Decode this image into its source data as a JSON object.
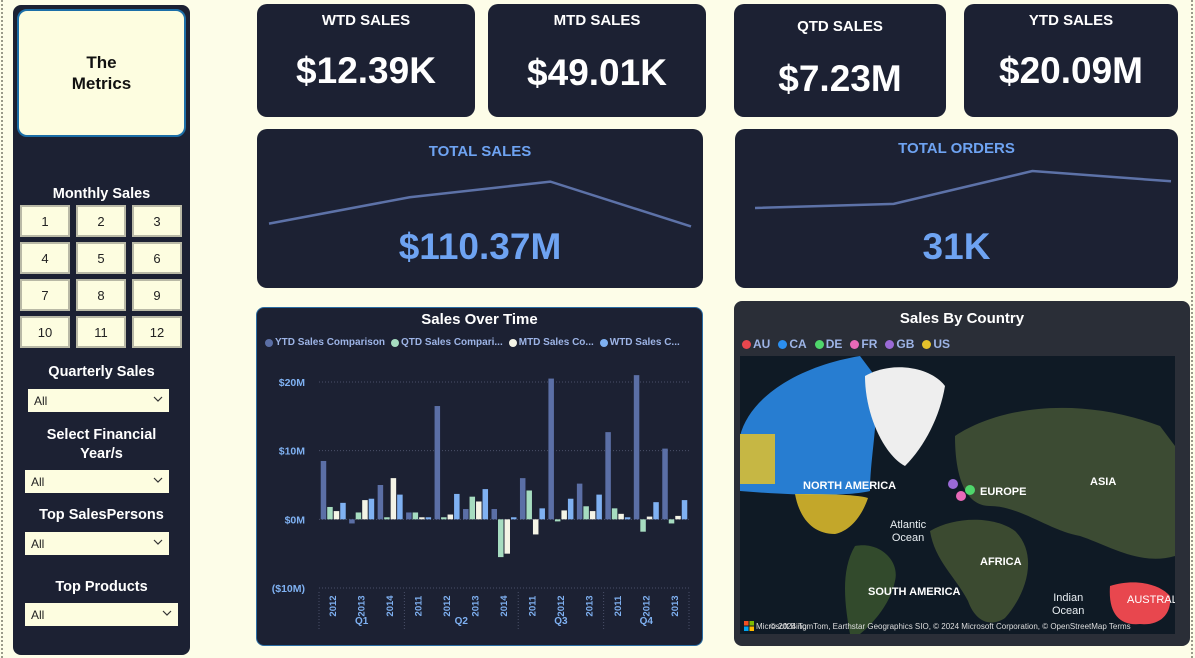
{
  "sidebar": {
    "logo_text": "The\nMetrics",
    "monthly_label": "Monthly Sales",
    "months": [
      "1",
      "2",
      "3",
      "4",
      "5",
      "6",
      "7",
      "8",
      "9",
      "10",
      "11",
      "12"
    ],
    "quarterly_label": "Quarterly Sales",
    "quarterly_value": "All",
    "fy_label": "Select Financial Year/s",
    "fy_value": "All",
    "salespersons_label": "Top SalesPersons",
    "salespersons_value": "All",
    "products_label": "Top Products",
    "products_value": "All"
  },
  "kpis": {
    "wtd": {
      "title": "WTD SALES",
      "value": "$12.39K"
    },
    "mtd": {
      "title": "MTD SALES",
      "value": "$49.01K"
    },
    "qtd": {
      "title": "QTD SALES",
      "value": "$7.23M"
    },
    "ytd": {
      "title": "YTD SALES",
      "value": "$20.09M"
    }
  },
  "total_sales": {
    "title": "TOTAL SALES",
    "value": "$110.37M",
    "trend": [
      0.15,
      0.62,
      0.9,
      0.1
    ]
  },
  "total_orders": {
    "title": "TOTAL ORDERS",
    "value": "31K",
    "trend": [
      0.05,
      0.15,
      0.95,
      0.7
    ]
  },
  "sales_over_time": {
    "title": "Sales Over Time",
    "legend": [
      "YTD Sales Comparison",
      "QTD Sales Compari...",
      "MTD Sales Co...",
      "WTD Sales C..."
    ]
  },
  "sales_by_country": {
    "title": "Sales By Country",
    "legend": [
      {
        "name": "AU",
        "color": "#e8474e"
      },
      {
        "name": "CA",
        "color": "#2b8ff0"
      },
      {
        "name": "DE",
        "color": "#4fd66b"
      },
      {
        "name": "FR",
        "color": "#e86ab8"
      },
      {
        "name": "GB",
        "color": "#9a6ad6"
      },
      {
        "name": "US",
        "color": "#e3c12b"
      }
    ],
    "labels": {
      "north_america": "NORTH AMERICA",
      "europe": "EUROPE",
      "asia": "ASIA",
      "africa": "AFRICA",
      "south_america": "SOUTH AMERICA",
      "atlantic": "Atlantic\nOcean",
      "indian": "Indian\nOcean",
      "australia": "AUSTRAL"
    },
    "credit": "© 2024 TomTom, Earthstar Geographics SIO, © 2024 Microsoft Corporation, © OpenStreetMap   Terms",
    "brand": "Microsoft Bing"
  },
  "chart_data": {
    "type": "bar",
    "title": "Sales Over Time",
    "x_levels": [
      "Year",
      "Quarter"
    ],
    "categories": [
      {
        "quarter": "Q1",
        "year": "2012"
      },
      {
        "quarter": "Q1",
        "year": "2013"
      },
      {
        "quarter": "Q1",
        "year": "2014"
      },
      {
        "quarter": "Q2",
        "year": "2011"
      },
      {
        "quarter": "Q2",
        "year": "2012"
      },
      {
        "quarter": "Q2",
        "year": "2013"
      },
      {
        "quarter": "Q2",
        "year": "2014"
      },
      {
        "quarter": "Q3",
        "year": "2011"
      },
      {
        "quarter": "Q3",
        "year": "2012"
      },
      {
        "quarter": "Q3",
        "year": "2013"
      },
      {
        "quarter": "Q4",
        "year": "2011"
      },
      {
        "quarter": "Q4",
        "year": "2012"
      },
      {
        "quarter": "Q4",
        "year": "2013"
      }
    ],
    "quarters": [
      "Q1",
      "Q2",
      "Q3",
      "Q4"
    ],
    "series": [
      {
        "name": "YTD Sales Comparison",
        "color": "#5b6fa6",
        "values": [
          8.5,
          -0.6,
          5.0,
          1.0,
          16.5,
          1.5,
          1.5,
          6.0,
          20.5,
          5.2,
          12.7,
          21.0,
          10.3
        ]
      },
      {
        "name": "QTD Sales Comparison",
        "color": "#a6dcc0",
        "values": [
          1.8,
          1.0,
          0.3,
          1.0,
          0.3,
          3.3,
          -5.5,
          4.2,
          -0.3,
          1.9,
          1.6,
          -1.8,
          -0.6
        ]
      },
      {
        "name": "MTD Sales Comparison",
        "color": "#f4f4e6",
        "values": [
          1.2,
          2.8,
          6.0,
          0.3,
          0.7,
          2.6,
          -5.0,
          -2.2,
          1.3,
          1.2,
          0.8,
          0.4,
          0.5
        ]
      },
      {
        "name": "WTD Sales Comparison",
        "color": "#7fb1f2",
        "values": [
          2.4,
          3.0,
          3.6,
          0.3,
          3.7,
          4.4,
          0.3,
          1.6,
          3.0,
          3.6,
          0.3,
          2.5,
          2.8
        ]
      }
    ],
    "yticks": [
      "$20M",
      "$10M",
      "$0M",
      "($10M)"
    ],
    "ylim": [
      -10,
      20
    ],
    "ylabel": "",
    "xlabel": ""
  }
}
